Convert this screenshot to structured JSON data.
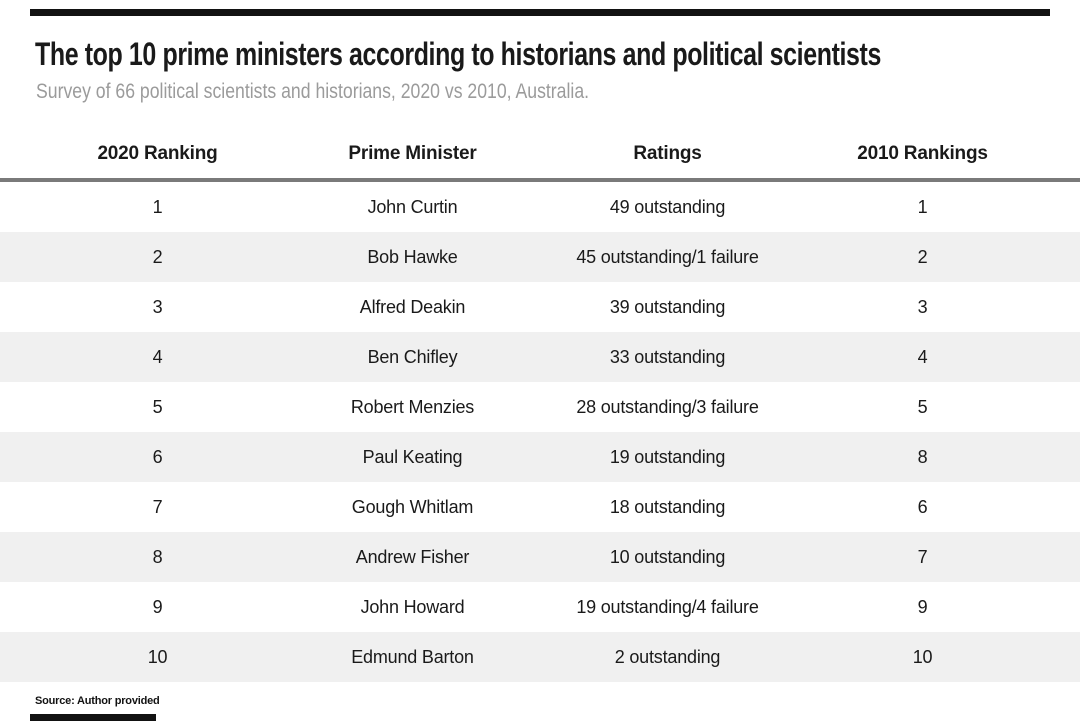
{
  "header": {
    "title": "The top 10 prime ministers according to historians and political scientists",
    "subtitle": "Survey of 66 political scientists and historians, 2020 vs 2010, Australia."
  },
  "footer": {
    "source": "Source: Author provided"
  },
  "colors": {
    "brand_bar": "#121212",
    "title_text": "#1a1a1a",
    "subtitle_text": "#9b9b9b",
    "header_rule": "#7a7a7a",
    "row_stripe": "#f0f0f0",
    "body_text": "#1a1a1a",
    "background": "#ffffff"
  },
  "chart_data": {
    "type": "table",
    "title": "The top 10 prime ministers according to historians and political scientists",
    "subtitle": "Survey of 66 political scientists and historians, 2020 vs 2010, Australia.",
    "columns": [
      "2020 Ranking",
      "Prime Minister",
      "Ratings",
      "2010 Rankings"
    ],
    "rows": [
      [
        "1",
        "John Curtin",
        "49 outstanding",
        "1"
      ],
      [
        "2",
        "Bob Hawke",
        "45 outstanding/1 failure",
        "2"
      ],
      [
        "3",
        "Alfred Deakin",
        "39 outstanding",
        "3"
      ],
      [
        "4",
        "Ben Chifley",
        "33 outstanding",
        "4"
      ],
      [
        "5",
        "Robert Menzies",
        "28 outstanding/3 failure",
        "5"
      ],
      [
        "6",
        "Paul Keating",
        "19 outstanding",
        "8"
      ],
      [
        "7",
        "Gough Whitlam",
        "18 outstanding",
        "6"
      ],
      [
        "8",
        "Andrew Fisher",
        "10 outstanding",
        "7"
      ],
      [
        "9",
        "John Howard",
        "19 outstanding/4 failure",
        "9"
      ],
      [
        "10",
        "Edmund Barton",
        "2 outstanding",
        "10"
      ]
    ],
    "source": "Source: Author provided",
    "layout": {
      "striping": "alternate rows shaded, starting with row 2",
      "text_align": "center",
      "columns_width": "4 equal columns inside 30px side margins",
      "legend": "none",
      "grid": "none"
    }
  }
}
